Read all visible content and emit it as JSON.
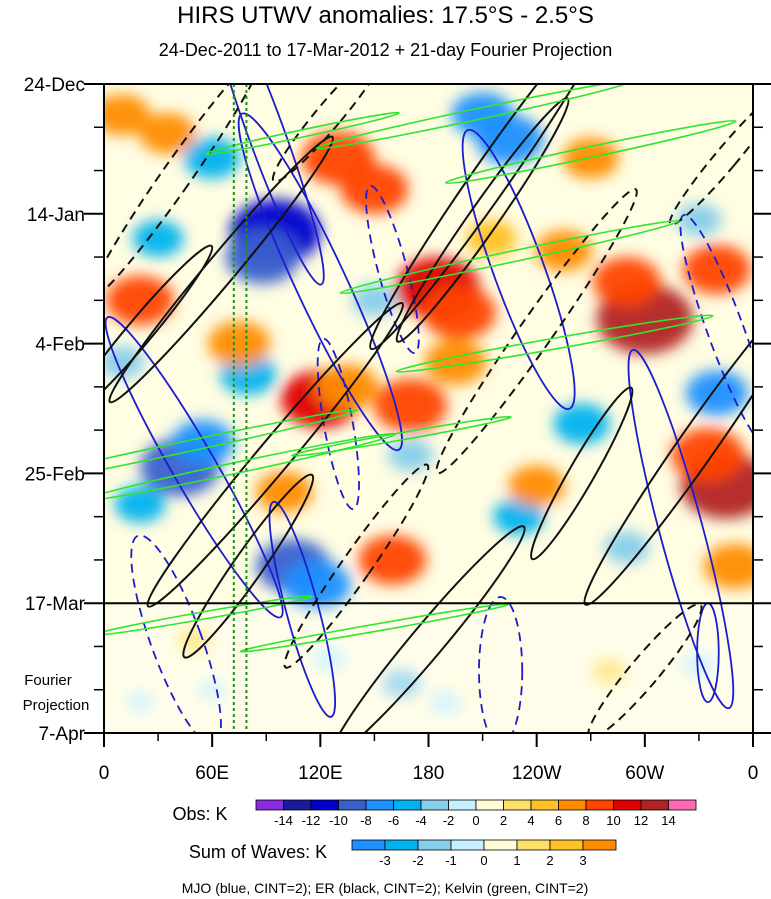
{
  "chart_data": {
    "type": "heatmap",
    "title": "HIRS UTWV anomalies: 17.5°S - 2.5°S",
    "subtitle": "24-Dec-2011 to 17-Mar-2012 + 21-day Fourier Projection",
    "y_axis": {
      "labels": [
        "24-Dec",
        "14-Jan",
        "4-Feb",
        "25-Feb",
        "17-Mar",
        "7-Apr"
      ],
      "days": [
        0,
        21,
        42,
        63,
        84,
        105
      ],
      "range_days": [
        0,
        105
      ],
      "projection_start_day": 84,
      "projection_label_lines": [
        "Fourier",
        "Projection"
      ]
    },
    "x_axis": {
      "labels": [
        "0",
        "60E",
        "120E",
        "180",
        "120W",
        "60W",
        "0"
      ],
      "longitudes": [
        0,
        60,
        120,
        180,
        240,
        300,
        360
      ],
      "range_lon": [
        0,
        360
      ]
    },
    "reference_lines": {
      "green_dashed_longitudes": [
        72,
        79
      ]
    },
    "obs_colorbar": {
      "label": "Obs: K",
      "ticks": [
        "-14",
        "-12",
        "-10",
        "-8",
        "-6",
        "-4",
        "-2",
        "0",
        "2",
        "4",
        "6",
        "8",
        "10",
        "12",
        "14"
      ],
      "colors": [
        "#8a2be2",
        "#1a1a9c",
        "#0000cd",
        "#3a5fcd",
        "#1e90ff",
        "#00b2ee",
        "#87ceeb",
        "#c6f0ff",
        "#fffcd8",
        "#ffe066",
        "#ffc125",
        "#ff8c00",
        "#ff4500",
        "#e00000",
        "#b22222",
        "#ff69b4"
      ]
    },
    "waves_colorbar": {
      "label": "Sum of Waves: K",
      "ticks": [
        "-3",
        "-2",
        "-1",
        "0",
        "1",
        "2",
        "3"
      ],
      "colors": [
        "#1e90ff",
        "#00b2ee",
        "#87ceeb",
        "#c6f0ff",
        "#fffcd8",
        "#ffe066",
        "#ffc125",
        "#ff8c00"
      ]
    },
    "footer": "MJO (blue, CINT=2); ER (black, CINT=2); Kelvin (green, CINT=2)",
    "blobs": [
      {
        "lon": 95,
        "day": 24,
        "v": -12
      },
      {
        "lon": 88,
        "day": 28,
        "v": -9
      },
      {
        "lon": 42,
        "day": 62,
        "v": -10
      },
      {
        "lon": 55,
        "day": 58,
        "v": -7
      },
      {
        "lon": 105,
        "day": 78,
        "v": -9
      },
      {
        "lon": 118,
        "day": 81,
        "v": -8
      },
      {
        "lon": 60,
        "day": 12,
        "v": -6
      },
      {
        "lon": 30,
        "day": 25,
        "v": -5
      },
      {
        "lon": 80,
        "day": 47,
        "v": -6
      },
      {
        "lon": 210,
        "day": 5,
        "v": -7
      },
      {
        "lon": 225,
        "day": 9,
        "v": -8
      },
      {
        "lon": 265,
        "day": 55,
        "v": -6
      },
      {
        "lon": 340,
        "day": 50,
        "v": -7
      },
      {
        "lon": 230,
        "day": 70,
        "v": -5
      },
      {
        "lon": 330,
        "day": 22,
        "v": -4
      },
      {
        "lon": 170,
        "day": 60,
        "v": -4
      },
      {
        "lon": 150,
        "day": 35,
        "v": -4
      },
      {
        "lon": 10,
        "day": 45,
        "v": -4
      },
      {
        "lon": 20,
        "day": 68,
        "v": -5
      },
      {
        "lon": 290,
        "day": 75,
        "v": -4
      },
      {
        "lon": 165,
        "day": 97,
        "v": -3
      },
      {
        "lon": 190,
        "day": 100,
        "v": -2
      },
      {
        "lon": 125,
        "day": 93,
        "v": -2
      },
      {
        "lon": 330,
        "day": 94,
        "v": -2
      },
      {
        "lon": 20,
        "day": 100,
        "v": -1
      },
      {
        "lon": 60,
        "day": 98,
        "v": -1
      },
      {
        "lon": 130,
        "day": 12,
        "v": 9
      },
      {
        "lon": 150,
        "day": 17,
        "v": 8
      },
      {
        "lon": 185,
        "day": 33,
        "v": 11
      },
      {
        "lon": 197,
        "day": 37,
        "v": 9
      },
      {
        "lon": 300,
        "day": 38,
        "v": 13
      },
      {
        "lon": 290,
        "day": 32,
        "v": 8
      },
      {
        "lon": 345,
        "day": 65,
        "v": 12
      },
      {
        "lon": 335,
        "day": 60,
        "v": 9
      },
      {
        "lon": 120,
        "day": 51,
        "v": 10
      },
      {
        "lon": 135,
        "day": 49,
        "v": 7
      },
      {
        "lon": 170,
        "day": 52,
        "v": 9
      },
      {
        "lon": 195,
        "day": 45,
        "v": 7
      },
      {
        "lon": 75,
        "day": 42,
        "v": 7
      },
      {
        "lon": 20,
        "day": 35,
        "v": 8
      },
      {
        "lon": 10,
        "day": 5,
        "v": 6
      },
      {
        "lon": 35,
        "day": 8,
        "v": 6
      },
      {
        "lon": 340,
        "day": 30,
        "v": 8
      },
      {
        "lon": 350,
        "day": 78,
        "v": 7
      },
      {
        "lon": 160,
        "day": 77,
        "v": 8
      },
      {
        "lon": 240,
        "day": 65,
        "v": 6
      },
      {
        "lon": 270,
        "day": 12,
        "v": 6
      },
      {
        "lon": 100,
        "day": 66,
        "v": 6
      },
      {
        "lon": 255,
        "day": 27,
        "v": 6
      },
      {
        "lon": 215,
        "day": 25,
        "v": 5
      },
      {
        "lon": 50,
        "day": 90,
        "v": 2
      },
      {
        "lon": 280,
        "day": 95,
        "v": 2
      },
      {
        "lon": 200,
        "day": 98,
        "v": 1
      }
    ],
    "contours": {
      "mjo_blue": [
        {
          "lon": 90,
          "day": 8,
          "rx": 10,
          "ry": 26,
          "rot": -20,
          "dashed": false
        },
        {
          "lon": 120,
          "day": 32,
          "rx": 14,
          "ry": 30,
          "rot": -25,
          "dashed": false
        },
        {
          "lon": 50,
          "day": 62,
          "rx": 12,
          "ry": 28,
          "rot": -30,
          "dashed": false
        },
        {
          "lon": 110,
          "day": 85,
          "rx": 9,
          "ry": 18,
          "rot": -15,
          "dashed": false
        },
        {
          "lon": 230,
          "day": 30,
          "rx": 14,
          "ry": 24,
          "rot": -20,
          "dashed": false
        },
        {
          "lon": 320,
          "day": 72,
          "rx": 12,
          "ry": 30,
          "rot": -15,
          "dashed": false
        },
        {
          "lon": 335,
          "day": 92,
          "rx": 6,
          "ry": 8,
          "rot": 0,
          "dashed": false
        },
        {
          "lon": 130,
          "day": 55,
          "rx": 8,
          "ry": 14,
          "rot": -10,
          "dashed": true
        },
        {
          "lon": 40,
          "day": 90,
          "rx": 14,
          "ry": 18,
          "rot": -20,
          "dashed": true
        },
        {
          "lon": 345,
          "day": 40,
          "rx": 10,
          "ry": 20,
          "rot": -20,
          "dashed": true
        },
        {
          "lon": 220,
          "day": 95,
          "rx": 12,
          "ry": 12,
          "rot": 0,
          "dashed": true
        },
        {
          "lon": 160,
          "day": 30,
          "rx": 8,
          "ry": 14,
          "rot": -15,
          "dashed": true
        }
      ],
      "er_black": [
        {
          "lon": 215,
          "day": 15,
          "rx": 10,
          "ry": 34,
          "rot": 35,
          "dashed": false
        },
        {
          "lon": 210,
          "day": 22,
          "rx": 8,
          "ry": 24,
          "rot": 35,
          "dashed": false
        },
        {
          "lon": 65,
          "day": 30,
          "rx": 8,
          "ry": 28,
          "rot": 40,
          "dashed": false
        },
        {
          "lon": 95,
          "day": 60,
          "rx": 9,
          "ry": 32,
          "rot": 40,
          "dashed": false
        },
        {
          "lon": 180,
          "day": 90,
          "rx": 9,
          "ry": 24,
          "rot": 40,
          "dashed": false
        },
        {
          "lon": 330,
          "day": 58,
          "rx": 10,
          "ry": 32,
          "rot": 35,
          "dashed": false
        },
        {
          "lon": 265,
          "day": 63,
          "rx": 7,
          "ry": 16,
          "rot": 30,
          "dashed": false
        },
        {
          "lon": 20,
          "day": 40,
          "rx": 7,
          "ry": 18,
          "rot": 40,
          "dashed": false
        },
        {
          "lon": 80,
          "day": 78,
          "rx": 8,
          "ry": 18,
          "rot": 35,
          "dashed": false
        },
        {
          "lon": 40,
          "day": 15,
          "rx": 8,
          "ry": 24,
          "rot": 35,
          "dashed": true
        },
        {
          "lon": 240,
          "day": 40,
          "rx": 9,
          "ry": 28,
          "rot": 35,
          "dashed": true
        },
        {
          "lon": 125,
          "day": 5,
          "rx": 7,
          "ry": 14,
          "rot": 40,
          "dashed": true
        },
        {
          "lon": 300,
          "day": 95,
          "rx": 8,
          "ry": 14,
          "rot": 40,
          "dashed": true
        },
        {
          "lon": 140,
          "day": 78,
          "rx": 8,
          "ry": 20,
          "rot": 35,
          "dashed": true
        },
        {
          "lon": 345,
          "day": 12,
          "rx": 6,
          "ry": 14,
          "rot": 40,
          "dashed": true
        }
      ],
      "kelvin_green": [
        {
          "lon": 205,
          "day": 5,
          "rx": 3,
          "ry": 26,
          "rot": 78
        },
        {
          "lon": 270,
          "day": 11,
          "rx": 3,
          "ry": 24,
          "rot": 78
        },
        {
          "lon": 225,
          "day": 28,
          "rx": 3,
          "ry": 28,
          "rot": 78
        },
        {
          "lon": 250,
          "day": 42,
          "rx": 3,
          "ry": 26,
          "rot": 80
        },
        {
          "lon": 40,
          "day": 59,
          "rx": 3,
          "ry": 30,
          "rot": 78
        },
        {
          "lon": 75,
          "day": 62,
          "rx": 3,
          "ry": 26,
          "rot": 78
        },
        {
          "lon": 165,
          "day": 57,
          "rx": 2,
          "ry": 18,
          "rot": 80
        },
        {
          "lon": 110,
          "day": 8,
          "rx": 2,
          "ry": 16,
          "rot": 78
        },
        {
          "lon": 150,
          "day": 88,
          "rx": 2,
          "ry": 22,
          "rot": 80
        },
        {
          "lon": 55,
          "day": 86,
          "rx": 2,
          "ry": 18,
          "rot": 80
        }
      ]
    }
  }
}
